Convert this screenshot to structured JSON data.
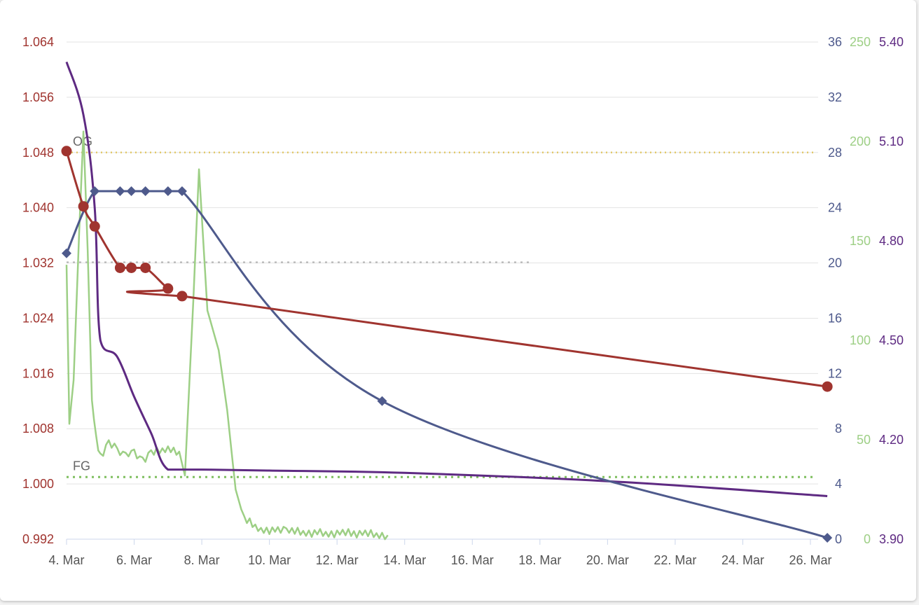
{
  "chart_data": {
    "type": "line",
    "x_axis": {
      "type": "date",
      "min": "2024-03-04",
      "max": "2024-03-26",
      "tick_labels": [
        "4. Mar",
        "6. Mar",
        "8. Mar",
        "10. Mar",
        "12. Mar",
        "14. Mar",
        "16. Mar",
        "18. Mar",
        "20. Mar",
        "22. Mar",
        "24. Mar",
        "26. Mar"
      ]
    },
    "y_axes": [
      {
        "id": "gravity",
        "side": "left",
        "color": "#a0342f",
        "min": 0.992,
        "max": 1.064,
        "tick_labels": [
          "0.992",
          "1.000",
          "1.008",
          "1.016",
          "1.024",
          "1.032",
          "1.040",
          "1.048",
          "1.056",
          "1.064"
        ]
      },
      {
        "id": "temp",
        "side": "right",
        "color": "#4e5a8c",
        "min": 0,
        "max": 36,
        "tick_labels": [
          "0",
          "4",
          "8",
          "12",
          "16",
          "20",
          "24",
          "28",
          "32",
          "36"
        ]
      },
      {
        "id": "green",
        "side": "right",
        "color": "#9dcf85",
        "min": 0,
        "max": 250,
        "tick_labels": [
          "0",
          "50",
          "100",
          "150",
          "200",
          "250"
        ]
      },
      {
        "id": "purple",
        "side": "right",
        "color": "#5e2a82",
        "min": 3.9,
        "max": 5.4,
        "tick_labels": [
          "3.90",
          "4.20",
          "4.50",
          "4.80",
          "5.10",
          "5.40"
        ]
      }
    ],
    "plot_lines": [
      {
        "label": "OG",
        "axis": "gravity",
        "value": 1.048,
        "color": "#e3c96a",
        "style": "dotted"
      },
      {
        "label": "FG",
        "axis": "gravity",
        "value": 1.001,
        "color": "#7fbf5f",
        "style": "dotted"
      },
      {
        "label": "",
        "axis": "gravity",
        "value": 1.0321,
        "color": "#bbbbbb",
        "style": "dotted"
      }
    ],
    "series": [
      {
        "axis": "gravity",
        "color": "#a0342f",
        "marker": "circle",
        "points": [
          [
            "2024-03-04T00:00",
            1.0482
          ],
          [
            "2024-03-04T12:00",
            1.0402
          ],
          [
            "2024-03-04T20:00",
            1.0373
          ],
          [
            "2024-03-05T14:00",
            1.0313
          ],
          [
            "2024-03-05T22:00",
            1.0313
          ],
          [
            "2024-03-06T08:00",
            1.0313
          ],
          [
            "2024-03-07T00:00",
            1.0283
          ],
          [
            "2024-03-07T10:00",
            1.0272
          ],
          [
            "2024-03-26T12:00",
            1.0141
          ]
        ]
      },
      {
        "axis": "temp",
        "color": "#4e5a8c",
        "marker": "diamond",
        "points": [
          [
            "2024-03-04T00:00",
            20.7
          ],
          [
            "2024-03-04T20:00",
            25.2
          ],
          [
            "2024-03-05T14:00",
            25.2
          ],
          [
            "2024-03-05T22:00",
            25.2
          ],
          [
            "2024-03-06T08:00",
            25.2
          ],
          [
            "2024-03-07T00:00",
            25.2
          ],
          [
            "2024-03-07T10:00",
            25.2
          ],
          [
            "2024-03-13T08:00",
            10.0
          ],
          [
            "2024-03-26T12:00",
            0.1
          ]
        ]
      },
      {
        "axis": "green",
        "color": "#9dcf85",
        "marker": "none",
        "points": [
          [
            "2024-03-04T00:00",
            138
          ],
          [
            "2024-03-04T02:00",
            58
          ],
          [
            "2024-03-04T05:00",
            80
          ],
          [
            "2024-03-04T09:00",
            155
          ],
          [
            "2024-03-04T12:00",
            205
          ],
          [
            "2024-03-04T15:00",
            145
          ],
          [
            "2024-03-04T18:00",
            70
          ],
          [
            "2024-03-04T21:00",
            50
          ],
          [
            "2024-03-05T00:00",
            42
          ],
          [
            "2024-03-05T06:00",
            48
          ],
          [
            "2024-03-05T12:00",
            45
          ],
          [
            "2024-03-05T18:00",
            42
          ],
          [
            "2024-03-06T00:00",
            43
          ],
          [
            "2024-03-06T06:00",
            40
          ],
          [
            "2024-03-06T12:00",
            43
          ],
          [
            "2024-03-07T00:00",
            46
          ],
          [
            "2024-03-07T08:00",
            44
          ],
          [
            "2024-03-07T12:00",
            32
          ],
          [
            "2024-03-07T18:00",
            120
          ],
          [
            "2024-03-07T22:00",
            186
          ],
          [
            "2024-03-08T04:00",
            115
          ],
          [
            "2024-03-08T12:00",
            95
          ],
          [
            "2024-03-08T18:00",
            65
          ],
          [
            "2024-03-09T00:00",
            25
          ],
          [
            "2024-03-09T06:00",
            10
          ],
          [
            "2024-03-09T18:00",
            5
          ],
          [
            "2024-03-10T12:00",
            4
          ],
          [
            "2024-03-11T12:00",
            3
          ],
          [
            "2024-03-12T12:00",
            3
          ],
          [
            "2024-03-13T12:00",
            2
          ]
        ]
      },
      {
        "axis": "purple",
        "color": "#5e2a82",
        "marker": "none",
        "points": [
          [
            "2024-03-04T00:00",
            5.34
          ],
          [
            "2024-03-04T12:00",
            5.18
          ],
          [
            "2024-03-04T20:00",
            4.9
          ],
          [
            "2024-03-05T00:00",
            4.5
          ],
          [
            "2024-03-05T12:00",
            4.45
          ],
          [
            "2024-03-06T00:00",
            4.33
          ],
          [
            "2024-03-06T12:00",
            4.22
          ],
          [
            "2024-03-07T00:00",
            4.11
          ],
          [
            "2024-03-08T00:00",
            4.11
          ],
          [
            "2024-03-10T00:00",
            4.107
          ],
          [
            "2024-03-14T00:00",
            4.1
          ],
          [
            "2024-03-20T00:00",
            4.075
          ],
          [
            "2024-03-26T12:00",
            4.03
          ]
        ]
      }
    ]
  }
}
